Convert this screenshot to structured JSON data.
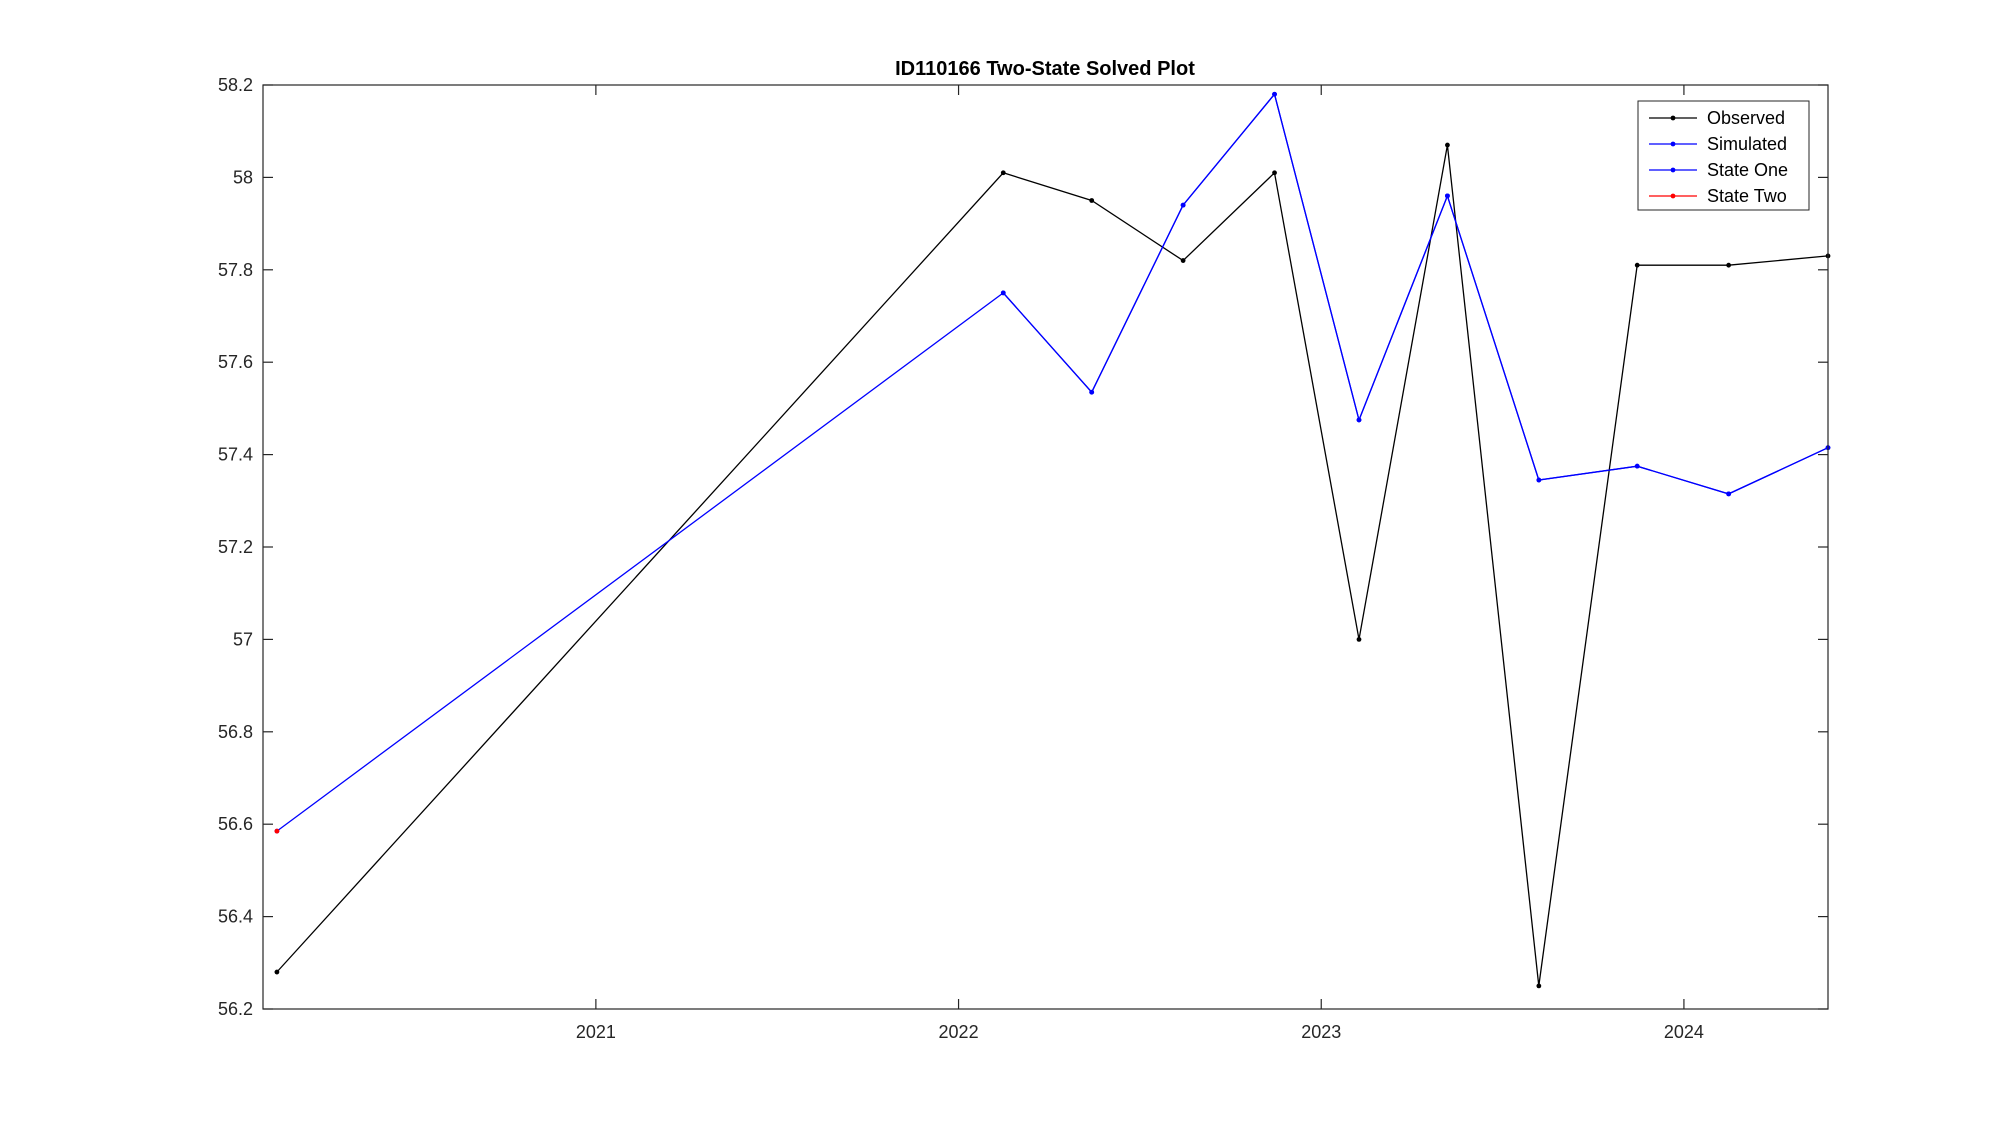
{
  "chart_data": {
    "type": "line",
    "title": "ID110166 Two-State Solved Plot",
    "xlabel": "",
    "ylabel": "",
    "x_axis_type": "date",
    "xlim": [
      "2020-02-01",
      "2024-05-25"
    ],
    "ylim": [
      56.2,
      58.2
    ],
    "y_ticks": [
      56.2,
      56.4,
      56.6,
      56.8,
      57.0,
      57.2,
      57.4,
      57.6,
      57.8,
      58.0,
      58.2
    ],
    "y_tick_labels": [
      "56.2",
      "56.4",
      "56.6",
      "56.8",
      "57",
      "57.2",
      "57.4",
      "57.6",
      "57.8",
      "58",
      "58.2"
    ],
    "x_ticks": [
      "2021-01-01",
      "2022-01-01",
      "2023-01-01",
      "2024-01-01"
    ],
    "x_tick_labels": [
      "2021",
      "2022",
      "2023",
      "2024"
    ],
    "grid": false,
    "legend_position": "top-right",
    "series": [
      {
        "name": "Observed",
        "color": "#000000",
        "x": [
          "2020-02-15",
          "2022-02-15",
          "2022-05-15",
          "2022-08-15",
          "2022-11-15",
          "2023-02-08",
          "2023-05-08",
          "2023-08-08",
          "2023-11-15",
          "2024-02-15",
          "2024-05-25"
        ],
        "y": [
          56.28,
          58.01,
          57.95,
          57.82,
          58.01,
          57.0,
          58.07,
          56.25,
          57.81,
          57.81,
          57.83
        ]
      },
      {
        "name": "Simulated",
        "color": "#0000ff",
        "x": [
          "2020-02-15",
          "2022-02-15",
          "2022-05-15",
          "2022-08-15",
          "2022-11-15",
          "2023-02-08",
          "2023-05-08",
          "2023-08-08",
          "2023-11-15",
          "2024-02-15",
          "2024-05-25"
        ],
        "y": [
          56.585,
          57.75,
          57.535,
          57.94,
          58.18,
          57.475,
          57.96,
          57.345,
          57.375,
          57.315,
          57.415
        ]
      },
      {
        "name": "State One",
        "color": "#0000ff",
        "x": [
          "2022-02-15",
          "2022-05-15",
          "2022-08-15",
          "2022-11-15",
          "2023-02-08",
          "2023-05-08",
          "2023-08-08",
          "2023-11-15",
          "2024-02-15",
          "2024-05-25"
        ],
        "y": [
          57.75,
          57.535,
          57.94,
          58.18,
          57.475,
          57.96,
          57.345,
          57.375,
          57.315,
          57.415
        ]
      },
      {
        "name": "State Two",
        "color": "#ff0000",
        "x": [
          "2020-02-15"
        ],
        "y": [
          56.585
        ]
      }
    ]
  }
}
